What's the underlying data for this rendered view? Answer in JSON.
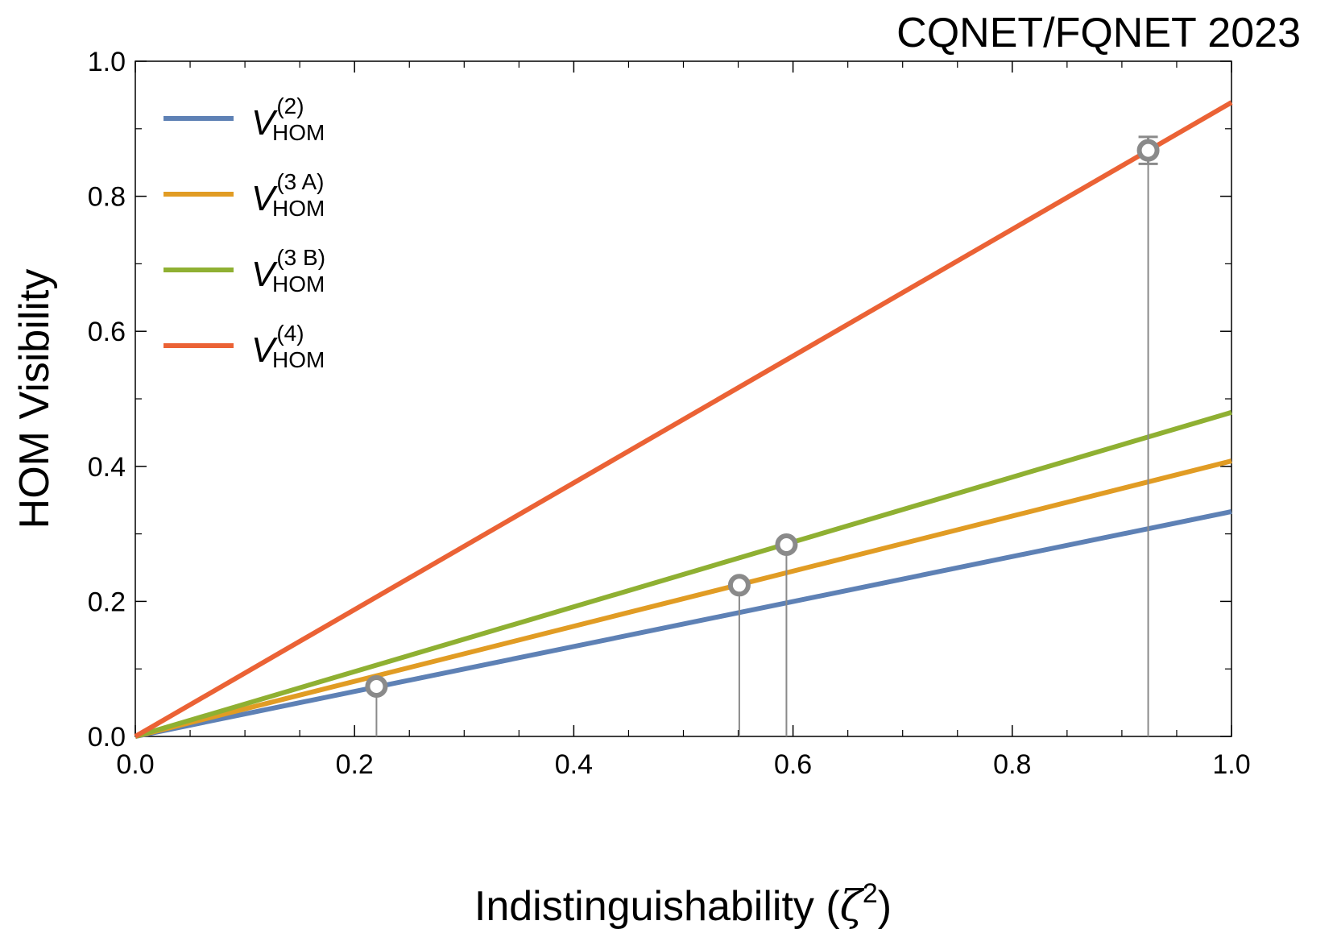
{
  "chart_data": {
    "type": "line",
    "annotation": "CQNET/FQNET 2023",
    "x_label": [
      "Indistinguishability (",
      "ζ",
      "2",
      ")"
    ],
    "y_label": "HOM Visibility",
    "x": [
      0,
      1
    ],
    "series": [
      {
        "name": "V",
        "name_sup": "(2)",
        "name_sub": "HOM",
        "color": "#5e81b5",
        "values": [
          0,
          0.333
        ]
      },
      {
        "name": "V",
        "name_sup": "(3 A)",
        "name_sub": "HOM",
        "color": "#e19c24",
        "values": [
          0,
          0.408
        ]
      },
      {
        "name": "V",
        "name_sup": "(3 B)",
        "name_sub": "HOM",
        "color": "#8fb032",
        "values": [
          0,
          0.48
        ]
      },
      {
        "name": "V",
        "name_sup": "(4)",
        "name_sub": "HOM",
        "color": "#eb6235",
        "values": [
          0,
          0.939
        ]
      }
    ],
    "points": {
      "color": "#8a8a8a",
      "x": [
        0.22,
        0.551,
        0.594,
        0.924
      ],
      "values": [
        0.074,
        0.224,
        0.284,
        0.868
      ],
      "errors": [
        0.004,
        0.006,
        0.006,
        0.02
      ]
    },
    "xlim": [
      0,
      1
    ],
    "ylim": [
      0,
      1
    ],
    "xticks": [
      {
        "value": 0,
        "label": "0.0"
      },
      0.2,
      0.4,
      0.6,
      0.8,
      {
        "value": 1,
        "label": "1.0"
      }
    ],
    "yticks": [
      {
        "value": 0,
        "label": "0.0"
      },
      0.2,
      0.4,
      0.6,
      0.8,
      {
        "value": 1,
        "label": "1.0"
      }
    ],
    "xminorticks": [
      0.05,
      0.1,
      0.15,
      0.25,
      0.3,
      0.35,
      0.45,
      0.5,
      0.55,
      0.65,
      0.7,
      0.75,
      0.85,
      0.9,
      0.95
    ],
    "yminorticks": [
      0.1,
      0.3,
      0.5,
      0.7,
      0.9
    ],
    "legend": "upper left"
  }
}
